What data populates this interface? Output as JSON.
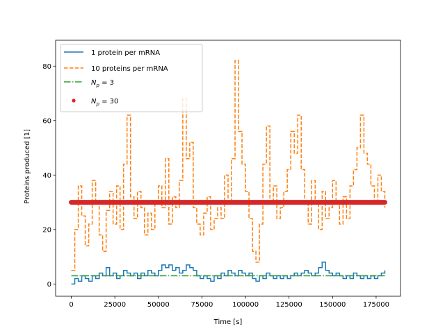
{
  "chart_data": {
    "type": "line",
    "xlabel": "Time [s]",
    "ylabel": "Proteins produced [1]",
    "xlim": [
      -9000,
      189000
    ],
    "ylim": [
      -4.5,
      89.5
    ],
    "xticks": [
      0,
      25000,
      50000,
      75000,
      100000,
      125000,
      150000,
      175000
    ],
    "yticks": [
      0,
      20,
      40,
      60,
      80
    ],
    "grid": false,
    "legend_position": "top-left",
    "series": [
      {
        "name": "1 protein per mRNA",
        "style": "solid",
        "color": "#1f77b4",
        "x": [
          0,
          2000,
          4000,
          6000,
          8000,
          10000,
          12000,
          14000,
          16000,
          18000,
          20000,
          22000,
          24000,
          26000,
          28000,
          30000,
          32000,
          34000,
          36000,
          38000,
          40000,
          42000,
          44000,
          46000,
          48000,
          50000,
          52000,
          54000,
          56000,
          58000,
          60000,
          62000,
          64000,
          66000,
          68000,
          70000,
          72000,
          74000,
          76000,
          78000,
          80000,
          82000,
          84000,
          86000,
          88000,
          90000,
          92000,
          94000,
          96000,
          98000,
          100000,
          102000,
          104000,
          106000,
          108000,
          110000,
          112000,
          114000,
          116000,
          118000,
          120000,
          122000,
          124000,
          126000,
          128000,
          130000,
          132000,
          134000,
          136000,
          138000,
          140000,
          142000,
          144000,
          146000,
          148000,
          150000,
          152000,
          154000,
          156000,
          158000,
          160000,
          162000,
          164000,
          166000,
          168000,
          170000,
          172000,
          174000,
          176000,
          178000,
          180000
        ],
        "y": [
          0,
          2,
          1,
          3,
          2,
          1,
          3,
          2,
          4,
          3,
          6,
          3,
          4,
          2,
          3,
          5,
          4,
          3,
          4,
          2,
          4,
          3,
          5,
          4,
          3,
          5,
          7,
          6,
          7,
          5,
          6,
          4,
          5,
          7,
          6,
          5,
          3,
          2,
          3,
          2,
          1,
          3,
          2,
          4,
          3,
          5,
          4,
          3,
          5,
          4,
          3,
          4,
          2,
          1,
          3,
          2,
          4,
          3,
          2,
          3,
          2,
          3,
          2,
          3,
          4,
          3,
          4,
          5,
          4,
          3,
          4,
          6,
          8,
          5,
          4,
          3,
          4,
          3,
          2,
          3,
          2,
          4,
          3,
          2,
          3,
          2,
          3,
          2,
          3,
          4,
          5
        ]
      },
      {
        "name": "10 proteins per mRNA",
        "style": "dashed",
        "color": "#ff7f0e",
        "x": [
          0,
          2000,
          4000,
          6000,
          8000,
          10000,
          12000,
          14000,
          16000,
          18000,
          20000,
          22000,
          24000,
          26000,
          28000,
          30000,
          32000,
          34000,
          36000,
          38000,
          40000,
          42000,
          44000,
          46000,
          48000,
          50000,
          52000,
          54000,
          56000,
          58000,
          60000,
          62000,
          64000,
          66000,
          68000,
          70000,
          72000,
          74000,
          76000,
          78000,
          80000,
          82000,
          84000,
          86000,
          88000,
          90000,
          92000,
          94000,
          96000,
          98000,
          100000,
          102000,
          104000,
          106000,
          108000,
          110000,
          112000,
          114000,
          116000,
          118000,
          120000,
          122000,
          124000,
          126000,
          128000,
          130000,
          132000,
          134000,
          136000,
          138000,
          140000,
          142000,
          144000,
          146000,
          148000,
          150000,
          152000,
          154000,
          156000,
          158000,
          160000,
          162000,
          164000,
          166000,
          168000,
          170000,
          172000,
          174000,
          176000,
          178000,
          180000
        ],
        "y": [
          5,
          20,
          36,
          25,
          14,
          22,
          38,
          30,
          18,
          12,
          27,
          34,
          22,
          36,
          20,
          44,
          62,
          32,
          24,
          34,
          28,
          18,
          26,
          20,
          30,
          36,
          28,
          46,
          22,
          32,
          28,
          38,
          68,
          46,
          52,
          28,
          22,
          18,
          26,
          32,
          20,
          24,
          28,
          24,
          40,
          30,
          46,
          82,
          56,
          44,
          34,
          24,
          12,
          8,
          22,
          44,
          58,
          30,
          36,
          24,
          28,
          34,
          42,
          56,
          48,
          62,
          42,
          30,
          22,
          38,
          30,
          20,
          34,
          24,
          28,
          38,
          30,
          22,
          32,
          24,
          36,
          42,
          50,
          62,
          48,
          44,
          36,
          30,
          40,
          34,
          28
        ]
      },
      {
        "name": "$N_p = 3$",
        "legend_text": "N",
        "legend_sub": "p",
        "legend_rest": " = 3",
        "style": "dashdot",
        "color": "#2ca02c",
        "x": [
          0,
          180000
        ],
        "y": [
          3,
          3
        ]
      },
      {
        "name": "$N_p = 30$",
        "legend_text": "N",
        "legend_sub": "p",
        "legend_rest": " = 30",
        "style": "markers",
        "color": "#d62728",
        "x": [
          0,
          180000
        ],
        "y": [
          30,
          30
        ]
      }
    ]
  }
}
